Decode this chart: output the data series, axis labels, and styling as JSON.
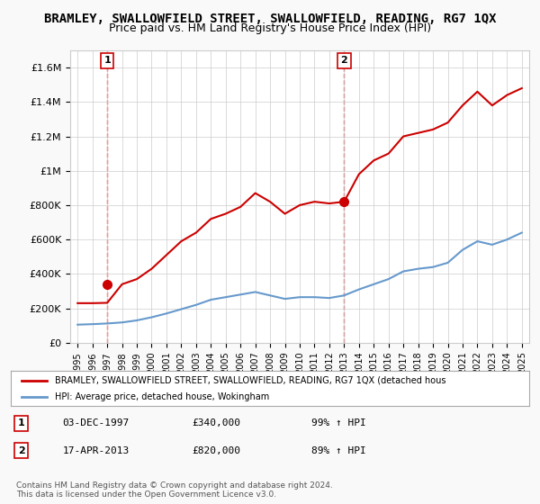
{
  "title": "BRAMLEY, SWALLOWFIELD STREET, SWALLOWFIELD, READING, RG7 1QX",
  "subtitle": "Price paid vs. HM Land Registry's House Price Index (HPI)",
  "xlabel": "",
  "ylabel": "",
  "ylim": [
    0,
    1700000
  ],
  "yticks": [
    0,
    200000,
    400000,
    600000,
    800000,
    1000000,
    1200000,
    1400000,
    1600000
  ],
  "ytick_labels": [
    "£0",
    "£200K",
    "£400K",
    "£600K",
    "£800K",
    "£1M",
    "£1.2M",
    "£1.4M",
    "£1.6M"
  ],
  "background_color": "#f9f9f9",
  "plot_bg_color": "#ffffff",
  "red_line_color": "#cc0000",
  "blue_line_color": "#6699cc",
  "marker1_date_idx": 3,
  "marker2_date_idx": 18,
  "marker1_value": 340000,
  "marker2_value": 820000,
  "legend_label_red": "BRAMLEY, SWALLOWFIELD STREET, SWALLOWFIELD, READING, RG7 1QX (detached hous",
  "legend_label_blue": "HPI: Average price, detached house, Wokingham",
  "footnote": "Contains HM Land Registry data © Crown copyright and database right 2024.\nThis data is licensed under the Open Government Licence v3.0.",
  "table_rows": [
    {
      "num": "1",
      "date": "03-DEC-1997",
      "price": "£340,000",
      "hpi": "99% ↑ HPI"
    },
    {
      "num": "2",
      "date": "17-APR-2013",
      "price": "£820,000",
      "hpi": "89% ↑ HPI"
    }
  ],
  "years": [
    1995,
    1996,
    1997,
    1998,
    1999,
    2000,
    2001,
    2002,
    2003,
    2004,
    2005,
    2006,
    2007,
    2008,
    2009,
    2010,
    2011,
    2012,
    2013,
    2014,
    2015,
    2016,
    2017,
    2018,
    2019,
    2020,
    2021,
    2022,
    2023,
    2024,
    2025
  ],
  "red_values": [
    230000,
    230000,
    232000,
    340000,
    370000,
    430000,
    510000,
    590000,
    640000,
    720000,
    750000,
    790000,
    870000,
    820000,
    750000,
    800000,
    820000,
    810000,
    820000,
    980000,
    1060000,
    1100000,
    1200000,
    1220000,
    1240000,
    1280000,
    1380000,
    1460000,
    1380000,
    1440000,
    1480000
  ],
  "blue_values": [
    105000,
    108000,
    112000,
    118000,
    130000,
    148000,
    170000,
    195000,
    220000,
    250000,
    265000,
    280000,
    295000,
    275000,
    255000,
    265000,
    265000,
    260000,
    275000,
    310000,
    340000,
    370000,
    415000,
    430000,
    440000,
    465000,
    540000,
    590000,
    570000,
    600000,
    640000
  ],
  "title_fontsize": 10,
  "subtitle_fontsize": 9
}
